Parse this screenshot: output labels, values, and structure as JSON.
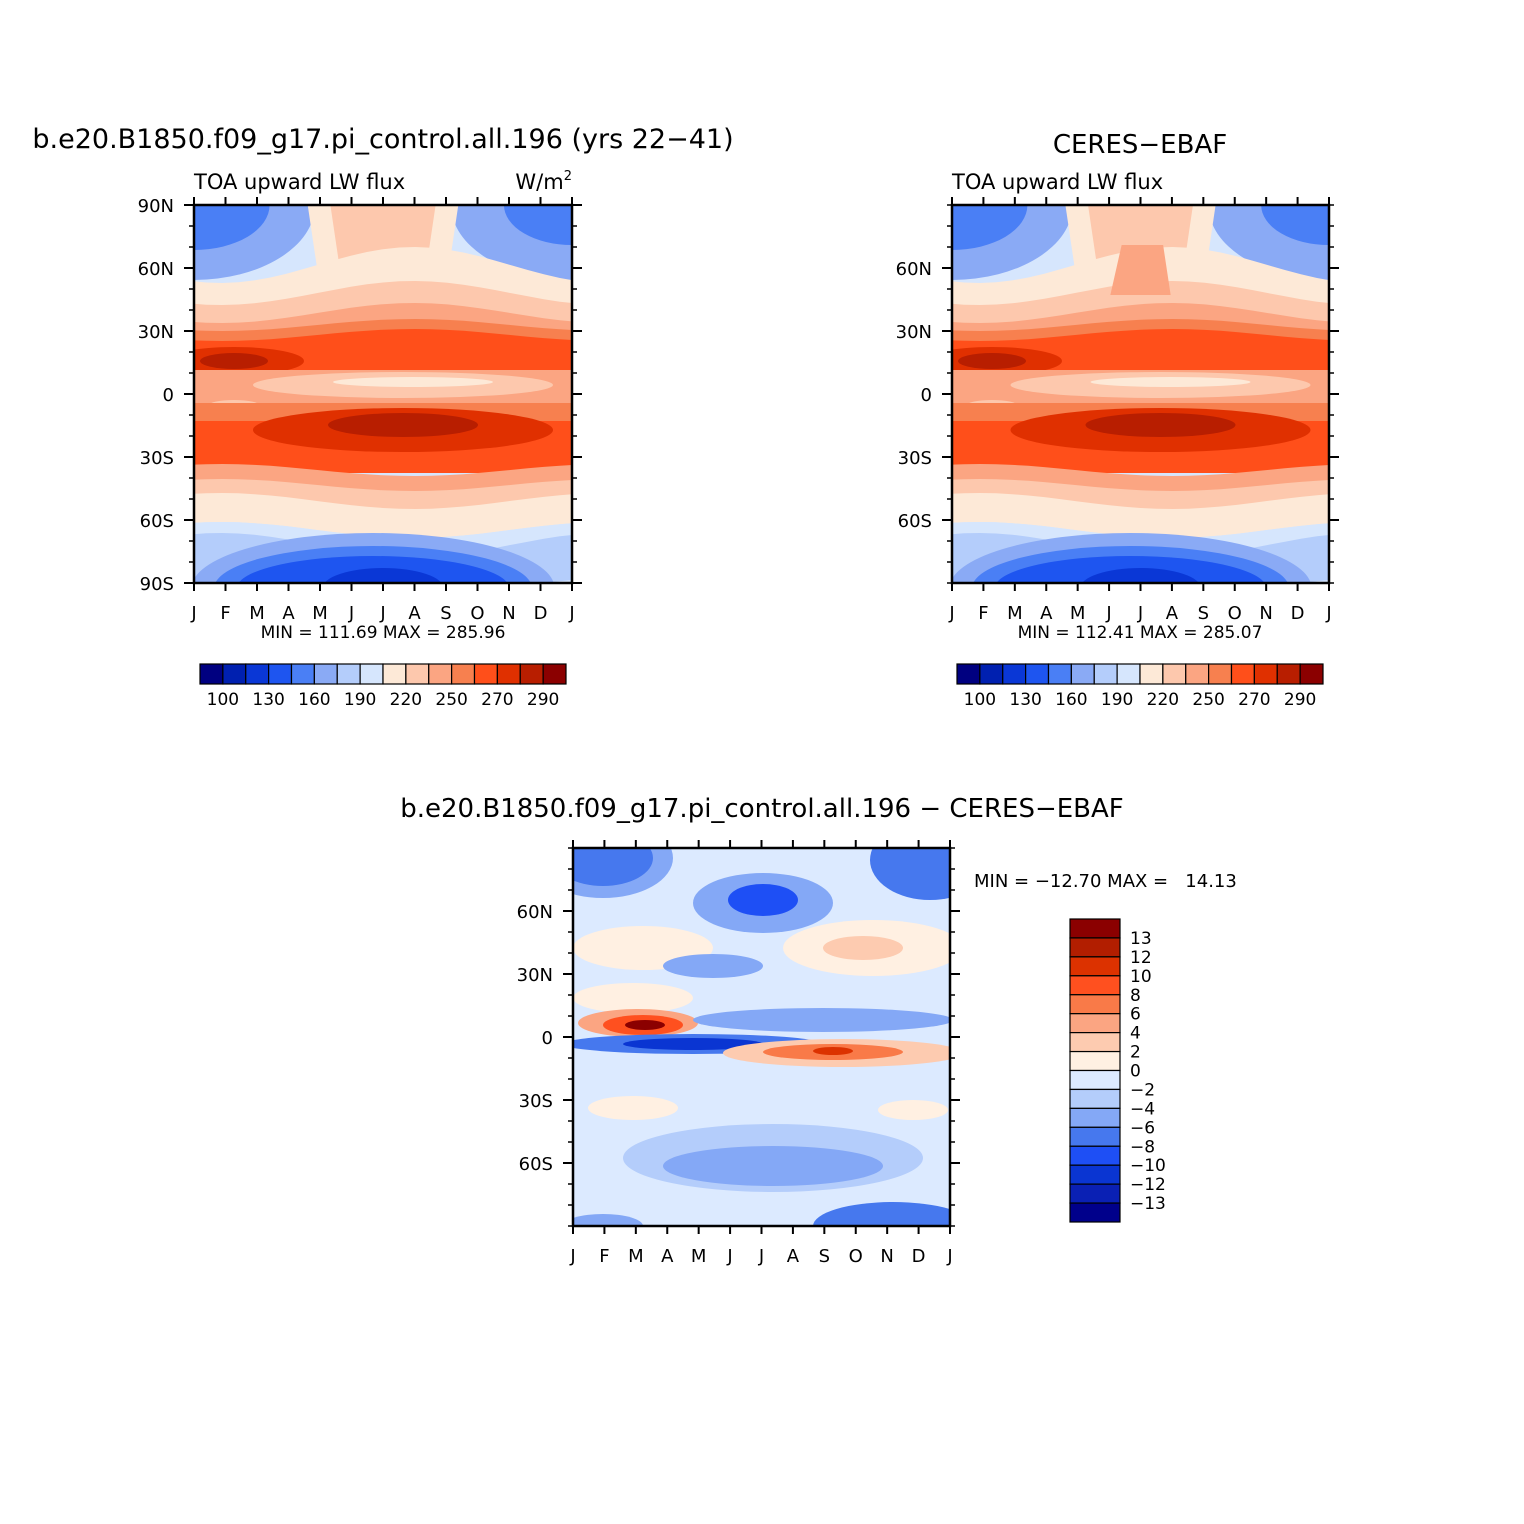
{
  "colors": {
    "abs_scale": [
      "#000080",
      "#0020b0",
      "#0a37d6",
      "#1e55f0",
      "#4a7ff5",
      "#8aaaf5",
      "#b4cdfb",
      "#d6e6fd",
      "#fde9d7",
      "#fdc8ad",
      "#fba582",
      "#f7804f",
      "#ff4f1a",
      "#e03000",
      "#b81e00",
      "#8b0000"
    ],
    "diff_scale": [
      "#00008b",
      "#0a20b4",
      "#0a35d2",
      "#1e4ff5",
      "#4678ee",
      "#84a8f6",
      "#b4cdfb",
      "#dceaff",
      "#fff0e2",
      "#fdcbb0",
      "#fba582",
      "#f97a48",
      "#ff501f",
      "#dc3200",
      "#b21e00",
      "#8b0000"
    ]
  },
  "chart_data": [
    {
      "type": "heatmap",
      "id": "model",
      "title": "b.e20.B1850.f09_g17.pi_control.all.196 (yrs 22−41)",
      "subtitle_left": "TOA upward LW flux",
      "subtitle_right": "W/m",
      "subtitle_right_sup": "2",
      "x_ticks": [
        "J",
        "F",
        "M",
        "A",
        "M",
        "J",
        "J",
        "A",
        "S",
        "O",
        "N",
        "D",
        "J"
      ],
      "y_ticks": [
        {
          "lat": 90,
          "label": "90N"
        },
        {
          "lat": 60,
          "label": "60N"
        },
        {
          "lat": 30,
          "label": "30N"
        },
        {
          "lat": 0,
          "label": "0"
        },
        {
          "lat": -30,
          "label": "30S"
        },
        {
          "lat": -60,
          "label": "60S"
        },
        {
          "lat": -90,
          "label": "90S"
        }
      ],
      "ylim": [
        -90,
        90
      ],
      "stats": "MIN = 111.69  MAX = 285.96",
      "min": 111.69,
      "max": 285.96,
      "levels": [
        90,
        100,
        120,
        130,
        150,
        160,
        180,
        190,
        210,
        220,
        240,
        250,
        260,
        270,
        280,
        290
      ],
      "colorbar_labels": [
        "100",
        "130",
        "160",
        "190",
        "220",
        "250",
        "270",
        "290"
      ],
      "colorbar_orientation": "horizontal"
    },
    {
      "type": "heatmap",
      "id": "obs",
      "title": "CERES−EBAF",
      "subtitle_left": "TOA upward LW flux",
      "x_ticks": [
        "J",
        "F",
        "M",
        "A",
        "M",
        "J",
        "J",
        "A",
        "S",
        "O",
        "N",
        "D",
        "J"
      ],
      "y_ticks": [
        {
          "lat": 60,
          "label": "60N"
        },
        {
          "lat": 30,
          "label": "30N"
        },
        {
          "lat": 0,
          "label": "0"
        },
        {
          "lat": -30,
          "label": "30S"
        },
        {
          "lat": -60,
          "label": "60S"
        }
      ],
      "ylim": [
        -90,
        90
      ],
      "stats": "MIN = 112.41  MAX = 285.07",
      "min": 112.41,
      "max": 285.07,
      "levels": [
        90,
        100,
        120,
        130,
        150,
        160,
        180,
        190,
        210,
        220,
        240,
        250,
        260,
        270,
        280,
        290
      ],
      "colorbar_labels": [
        "100",
        "130",
        "160",
        "190",
        "220",
        "250",
        "270",
        "290"
      ],
      "colorbar_orientation": "horizontal"
    },
    {
      "type": "heatmap",
      "id": "diff",
      "title": "b.e20.B1850.f09_g17.pi_control.all.196 − CERES−EBAF",
      "x_ticks": [
        "J",
        "F",
        "M",
        "A",
        "M",
        "J",
        "J",
        "A",
        "S",
        "O",
        "N",
        "D",
        "J"
      ],
      "y_ticks": [
        {
          "lat": 60,
          "label": "60N"
        },
        {
          "lat": 30,
          "label": "30N"
        },
        {
          "lat": 0,
          "label": "0"
        },
        {
          "lat": -30,
          "label": "30S"
        },
        {
          "lat": -60,
          "label": "60S"
        }
      ],
      "ylim": [
        -90,
        90
      ],
      "stats": "MIN = −12.70 MAX =   14.13",
      "min": -12.7,
      "max": 14.13,
      "levels": [
        -13,
        -12,
        -10,
        -8,
        -6,
        -4,
        -2,
        0,
        2,
        4,
        6,
        8,
        10,
        12,
        13
      ],
      "colorbar_labels": [
        "13",
        "12",
        "10",
        "8",
        "6",
        "4",
        "2",
        "0",
        "−2",
        "−4",
        "−6",
        "−8",
        "−10",
        "−12",
        "−13"
      ],
      "colorbar_orientation": "vertical"
    }
  ]
}
